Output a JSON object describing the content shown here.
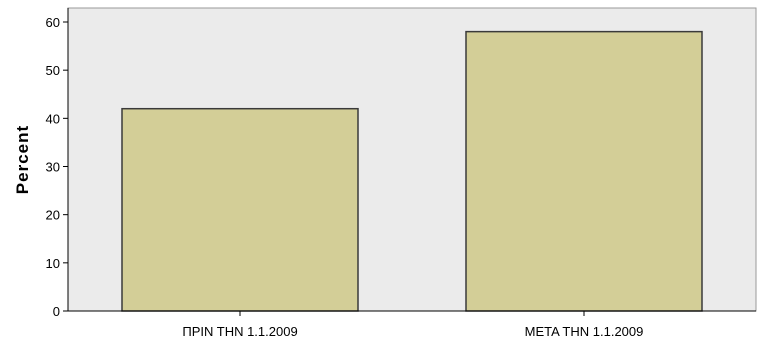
{
  "chart_data": {
    "type": "bar",
    "categories": [
      "ΠΡΙΝ ΤΗΝ 1.1.2009",
      "ΜΕΤΑ ΤΗΝ 1.1.2009"
    ],
    "values": [
      42,
      58
    ],
    "title": "",
    "xlabel": "",
    "ylabel": "Percent",
    "ylim": [
      0,
      60
    ],
    "yticks": [
      0,
      10,
      20,
      30,
      40,
      50,
      60
    ],
    "grid": false,
    "legend": "none",
    "colors": {
      "plot_background": "#ebebeb",
      "bar_fill": "#d3ce97",
      "bar_stroke": "#3a3a3a",
      "axis": "#000000"
    }
  }
}
